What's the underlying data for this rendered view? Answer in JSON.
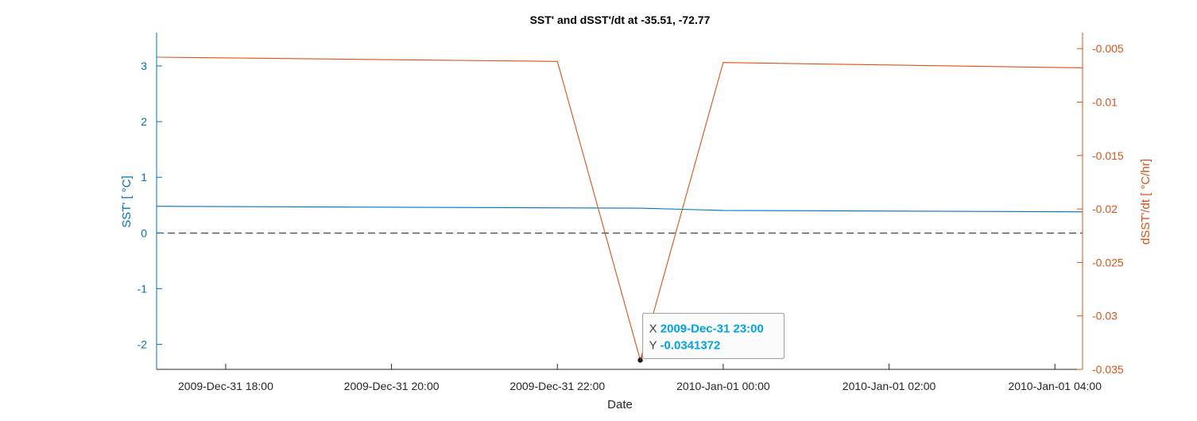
{
  "chart_data": {
    "type": "line",
    "title": "SST' and dSST'/dt at -35.51, -72.77",
    "xlabel": "Date",
    "ylabel_left": "SST' [ °C]",
    "ylabel_right": "dSST'/dt [ °C/hr]",
    "x_ticks": [
      "2009-Dec-31 18:00",
      "2009-Dec-31 20:00",
      "2009-Dec-31 22:00",
      "2010-Jan-01 00:00",
      "2010-Jan-01 02:00",
      "2010-Jan-01 04:00"
    ],
    "xlim": [
      "2009-Dec-31 17:10",
      "2010-Jan-01 04:20"
    ],
    "ylim_left": [
      -2.45,
      3.6
    ],
    "ylim_right": [
      -0.035,
      -0.0035
    ],
    "yticks_left": [
      -2,
      -1,
      0,
      1,
      2,
      3
    ],
    "yticks_right": [
      -0.035,
      -0.03,
      -0.025,
      -0.02,
      -0.015,
      -0.01,
      -0.005
    ],
    "ytick_labels_right": [
      "-0.035",
      "-0.03",
      "-0.025",
      "-0.02",
      "-0.015",
      "-0.01",
      "-0.005"
    ],
    "grid": false,
    "zero_line": true,
    "colors": {
      "left": "#0072BD",
      "right": "#D95319",
      "zero_line": "#000000",
      "tooltip_value": "#00A2E8"
    },
    "series": [
      {
        "axis": "left",
        "x": [
          "2009-Dec-31 17:10",
          "2009-Dec-31 23:00",
          "2010-Jan-01 00:00",
          "2010-Jan-01 04:20"
        ],
        "values": [
          0.48,
          0.445,
          0.405,
          0.38
        ]
      },
      {
        "axis": "right",
        "x": [
          "2009-Dec-31 17:10",
          "2009-Dec-31 22:00",
          "2009-Dec-31 23:00",
          "2010-Jan-01 00:00",
          "2010-Jan-01 04:20"
        ],
        "values": [
          -0.0058,
          -0.0062,
          -0.0341372,
          -0.0063,
          -0.0068
        ]
      }
    ],
    "datatip": {
      "x_label": "X",
      "x_value": "2009-Dec-31 23:00",
      "y_label": "Y",
      "y_value": "-0.0341372",
      "point_x": "2009-Dec-31 23:00",
      "point_y": -0.0341372
    }
  }
}
